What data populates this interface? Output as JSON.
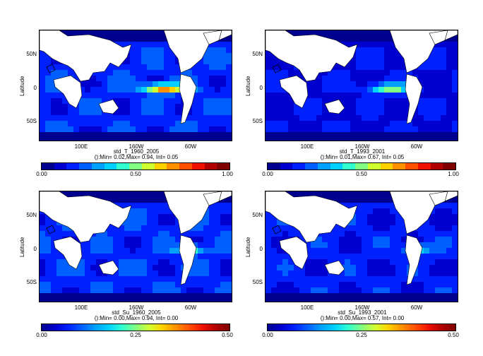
{
  "panels": [
    {
      "title": "std_T_1960_2005",
      "stats": "():Min= 0.02,Max= 0.94, Int= 0.05",
      "ylabel": "Latitude",
      "yticks": [
        "50N",
        "0",
        "50S"
      ],
      "xticks": [
        "100E",
        "160W",
        "60W"
      ],
      "colorbar": {
        "type": "discrete",
        "ticks": [
          "0.00",
          "0.50",
          "1.00"
        ]
      },
      "field_scale": 1.0
    },
    {
      "title": "std_T_1993_2001",
      "stats": "():Min= 0.01,Max= 0.67, Int= 0.05",
      "ylabel": "Latitude",
      "yticks": [
        "50N",
        "0",
        "50S"
      ],
      "xticks": [
        "100E",
        "160W",
        "60W"
      ],
      "colorbar": {
        "type": "discrete",
        "ticks": [
          "0.00",
          "0.50",
          "1.00"
        ]
      },
      "field_scale": 0.7
    },
    {
      "title": "std_Su_1960_2005",
      "stats": "():Min= 0.00,Max= 0.94, Int= 0.00",
      "ylabel": "Latitude",
      "yticks": [
        "50N",
        "0",
        "50S"
      ],
      "xticks": [
        "100E",
        "160W",
        "60W"
      ],
      "colorbar": {
        "type": "smooth",
        "ticks": [
          "0.00",
          "0.25",
          "0.50"
        ]
      },
      "field_scale": 1.0
    },
    {
      "title": "std_Su_1993_2001",
      "stats": "():Min= 0.00,Max= 0.57, Int= 0.00",
      "ylabel": "Latitude",
      "yticks": [
        "50N",
        "0",
        "50S"
      ],
      "xticks": [
        "100E",
        "160W",
        "60W"
      ],
      "colorbar": {
        "type": "smooth",
        "ticks": [
          "0.00",
          "0.25",
          "0.50"
        ]
      },
      "field_scale": 0.85
    }
  ],
  "colors": {
    "ramp": [
      "#00008f",
      "#0000cf",
      "#0020ff",
      "#0060ff",
      "#00a0ff",
      "#00d0ff",
      "#30ffd0",
      "#80ff80",
      "#d0ff30",
      "#ffd000",
      "#ff9000",
      "#ff5000",
      "#ef1000",
      "#b00000",
      "#800000"
    ],
    "land": "#ffffff",
    "coast": "#000000"
  }
}
